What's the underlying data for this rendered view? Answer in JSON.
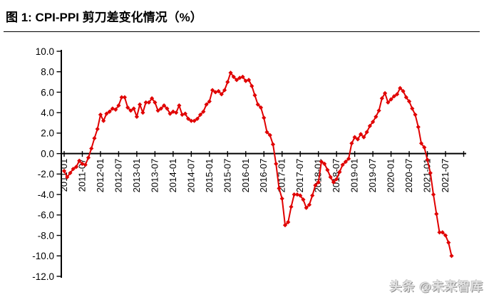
{
  "title": "图 1: CPI-PPI 剪刀差变化情况（%）",
  "watermark": "头条 @未来智库",
  "colors": {
    "line": "#e00000",
    "axis": "#000000"
  },
  "chart_data": {
    "type": "line",
    "title": "图 1: CPI-PPI 剪刀差变化情况（%）",
    "unit": "%",
    "x_start": "2011-01",
    "x_end": "2021-09",
    "x_interval": "monthly",
    "grid": false,
    "legend": "none",
    "marker": "diamond",
    "ylim": [
      -12,
      10
    ],
    "y_tick_labels": [
      "10.0",
      "8.0",
      "6.0",
      "4.0",
      "2.0",
      "0.0",
      "-2.0",
      "-4.0",
      "-6.0",
      "-8.0",
      "-10.0",
      "-12.0"
    ],
    "x_tick_labels": [
      "2011-01",
      "2011-07",
      "2012-01",
      "2012-07",
      "2013-01",
      "2013-07",
      "2014-01",
      "2014-07",
      "2015-01",
      "2015-07",
      "2016-01",
      "2016-07",
      "2017-01",
      "2017-07",
      "2018-01",
      "2018-07",
      "2019-01",
      "2019-07",
      "2020-01",
      "2020-07",
      "2021-01",
      "2021-07"
    ],
    "series": [
      {
        "name": "CPI-PPI剪刀差",
        "color": "#e00000",
        "values": [
          -1.7,
          -2.3,
          -1.9,
          -1.5,
          -1.3,
          -0.7,
          -1.0,
          -1.1,
          -0.4,
          0.5,
          1.5,
          2.4,
          3.8,
          3.2,
          3.9,
          4.1,
          4.4,
          4.3,
          4.7,
          5.5,
          5.5,
          4.5,
          4.2,
          4.4,
          3.6,
          4.8,
          4.0,
          5.0,
          5.0,
          5.4,
          5.0,
          4.2,
          4.4,
          4.7,
          4.4,
          3.9,
          4.1,
          4.0,
          4.7,
          3.8,
          3.9,
          3.4,
          3.2,
          3.2,
          3.4,
          3.8,
          4.1,
          4.8,
          5.1,
          6.2,
          6.0,
          6.1,
          5.8,
          6.2,
          7.0,
          7.9,
          7.5,
          7.2,
          7.4,
          7.5,
          7.1,
          7.2,
          6.6,
          5.7,
          4.8,
          4.5,
          3.5,
          2.1,
          1.8,
          0.9,
          -1.0,
          -3.4,
          -4.4,
          -7.0,
          -6.7,
          -5.2,
          -4.0,
          -4.0,
          -4.1,
          -4.5,
          -5.3,
          -5.0,
          -4.1,
          -3.1,
          -2.8,
          -0.8,
          -1.0,
          -1.6,
          -2.3,
          -2.8,
          -2.5,
          -1.8,
          -1.1,
          -0.8,
          -0.5,
          1.0,
          1.6,
          1.4,
          1.9,
          1.6,
          2.1,
          2.7,
          3.1,
          3.6,
          4.2,
          5.4,
          5.9,
          5.0,
          5.3,
          5.6,
          5.8,
          6.4,
          6.1,
          5.5,
          5.1,
          4.4,
          3.8,
          2.6,
          1.0,
          0.6,
          -0.6,
          -1.9,
          -4.0,
          -5.9,
          -7.7,
          -7.7,
          -8.0,
          -8.7,
          -10.0
        ]
      }
    ]
  }
}
